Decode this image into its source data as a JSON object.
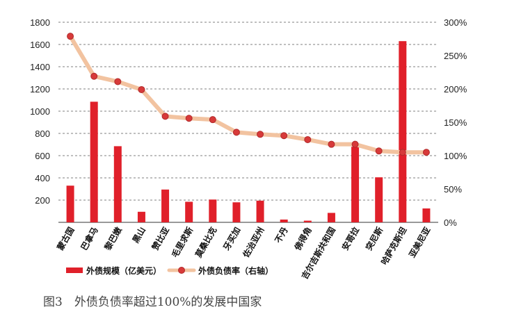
{
  "chart_data": {
    "type": "bar",
    "categories": [
      "蒙古国",
      "巴拿马",
      "黎巴嫩",
      "黑山",
      "赞比亚",
      "毛里求斯",
      "莫桑比克",
      "牙买加",
      "佐治亚州",
      "不丹",
      "佛得角",
      "吉尔吉斯共和国",
      "安哥拉",
      "突尼斯",
      "哈萨克斯坦",
      "亚美尼亚"
    ],
    "series": [
      {
        "name": "外债规模（亿美元）",
        "type": "bar",
        "axis": "left",
        "values": [
          330,
          1085,
          685,
          95,
          295,
          185,
          205,
          180,
          195,
          25,
          15,
          85,
          680,
          405,
          1630,
          125
        ]
      },
      {
        "name": "外债负债率（右轴）",
        "type": "line",
        "axis": "right",
        "values": [
          279,
          219,
          211,
          199,
          159,
          156,
          154,
          135,
          132,
          130,
          124,
          117,
          117,
          107,
          105,
          105
        ]
      }
    ],
    "y_left": {
      "lim": [
        0,
        1800
      ],
      "ticks": [
        "200",
        "400",
        "600",
        "800",
        "1000",
        "1200",
        "1400",
        "1600",
        "1800"
      ]
    },
    "y_right": {
      "lim": [
        0,
        300
      ],
      "ticks": [
        "0%",
        "50%",
        "100%",
        "150%",
        "200%",
        "250%",
        "300%"
      ]
    },
    "grid": true,
    "legend_position": "bottom-left",
    "colors": {
      "bar": "#e0202a",
      "line": "#f2c3a0",
      "marker": "#d73a3a",
      "marker_edge": "#b02a2a"
    }
  },
  "caption": "图3　外债负债率超过100%的发展中国家"
}
